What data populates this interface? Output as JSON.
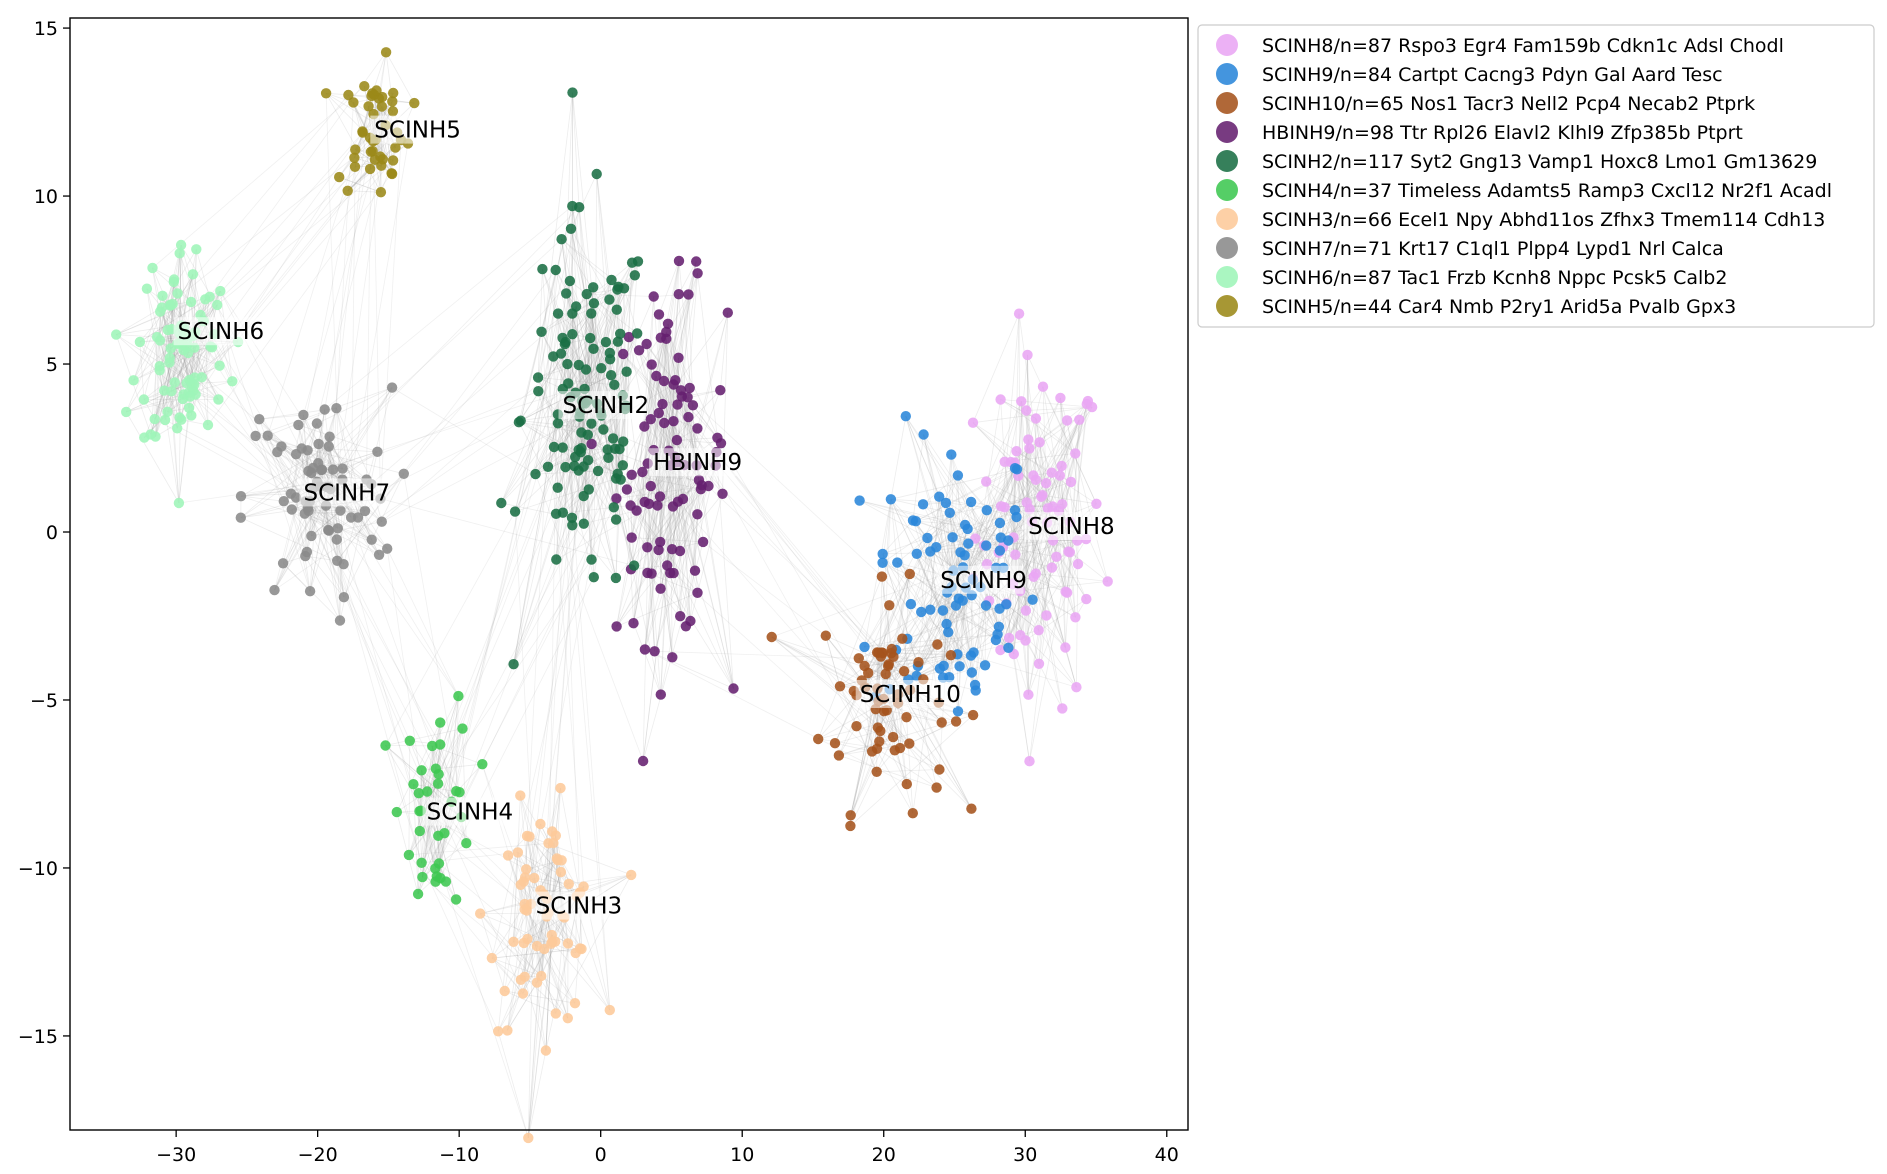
{
  "chart_data": {
    "type": "scatter",
    "title": "",
    "xlabel": "",
    "ylabel": "",
    "xlim": [
      -37.5,
      41.5
    ],
    "ylim": [
      -17.8,
      15.3
    ],
    "xticks": [
      -30,
      -20,
      -10,
      0,
      10,
      20,
      30,
      40
    ],
    "yticks": [
      15,
      10,
      5,
      0,
      -5,
      -10,
      -15
    ],
    "xtick_labels": [
      "−30",
      "−20",
      "−10",
      "0",
      "10",
      "20",
      "30",
      "40"
    ],
    "ytick_labels": [
      "15",
      "10",
      "5",
      "0",
      "−5",
      "−10",
      "−15"
    ],
    "grid": false,
    "legend_position": "outside-upper-right",
    "edges": {
      "color": "#999999",
      "description_visible": false
    },
    "series": [
      {
        "name": "SCINH8/n=87 Rspo3 Egr4 Fam159b Cdkn1c Adsl Chodl",
        "label": "SCINH8",
        "color": "#e9a6f4",
        "n": 87,
        "center": [
          31,
          0
        ],
        "spread": [
          3.5,
          4
        ],
        "label_pos": [
          30.2,
          0
        ]
      },
      {
        "name": "SCINH9/n=84 Cartpt Cacng3 Pdyn Gal Aard Tesc",
        "label": "SCINH9",
        "color": "#2a86d9",
        "n": 84,
        "center": [
          25,
          -1.5
        ],
        "spread": [
          4.5,
          3.5
        ],
        "label_pos": [
          24,
          -1.6
        ]
      },
      {
        "name": "SCINH10/n=65 Nos1 Tacr3 Nell2 Pcp4 Necab2 Ptprk",
        "label": "SCINH10",
        "color": "#a5531d",
        "n": 65,
        "center": [
          20,
          -5
        ],
        "spread": [
          3.5,
          2.5
        ],
        "label_pos": [
          18.3,
          -5
        ]
      },
      {
        "name": "HBINH9/n=98 Ttr Rpl26 Elavl2 Klhl9 Zfp385b Ptprt",
        "label": "HBINH9",
        "color": "#65206f",
        "n": 98,
        "center": [
          5,
          2
        ],
        "spread": [
          3,
          4
        ],
        "label_pos": [
          3.7,
          1.9
        ]
      },
      {
        "name": "SCINH2/n=117 Syt2 Gng13 Vamp1 Hoxc8 Lmo1 Gm13629",
        "label": "SCINH2",
        "color": "#1a6e44",
        "n": 117,
        "center": [
          -1,
          3.5
        ],
        "spread": [
          3.5,
          4.5
        ],
        "label_pos": [
          -2.7,
          3.6
        ]
      },
      {
        "name": "SCINH4/n=37 Timeless Adamts5 Ramp3 Cxcl12 Nr2f1 Acadl",
        "label": "SCINH4",
        "color": "#3ec751",
        "n": 37,
        "center": [
          -11.5,
          -8
        ],
        "spread": [
          2,
          2.5
        ],
        "label_pos": [
          -12.3,
          -8.5
        ]
      },
      {
        "name": "SCINH3/n=66 Ecel1 Npy Abhd11os Zfhx3 Tmem114 Cdh13",
        "label": "SCINH3",
        "color": "#fdc99a",
        "n": 66,
        "center": [
          -4,
          -11.5
        ],
        "spread": [
          3,
          2.5
        ],
        "label_pos": [
          -4.6,
          -11.3
        ]
      },
      {
        "name": "SCINH7/n=71 Krt17 C1ql1 Plpp4 Lypd1 Nrl Calca",
        "label": "SCINH7",
        "color": "#8a8a8a",
        "n": 71,
        "center": [
          -20,
          1
        ],
        "spread": [
          4,
          2.5
        ],
        "label_pos": [
          -21,
          1
        ]
      },
      {
        "name": "SCINH6/n=87 Tac1 Frzb Kcnh8 Nppc Pcsk5 Calb2",
        "label": "SCINH6",
        "color": "#9ef5b8",
        "n": 87,
        "center": [
          -29.5,
          5.5
        ],
        "spread": [
          2.5,
          2.5
        ],
        "label_pos": [
          -29.9,
          5.8
        ]
      },
      {
        "name": "SCINH5/n=44 Car4 Nmb P2ry1 Arid5a Pvalb Gpx3",
        "label": "SCINH5",
        "color": "#9b8918",
        "n": 44,
        "center": [
          -16,
          12
        ],
        "spread": [
          2,
          1.5
        ],
        "label_pos": [
          -16,
          11.8
        ]
      }
    ]
  }
}
